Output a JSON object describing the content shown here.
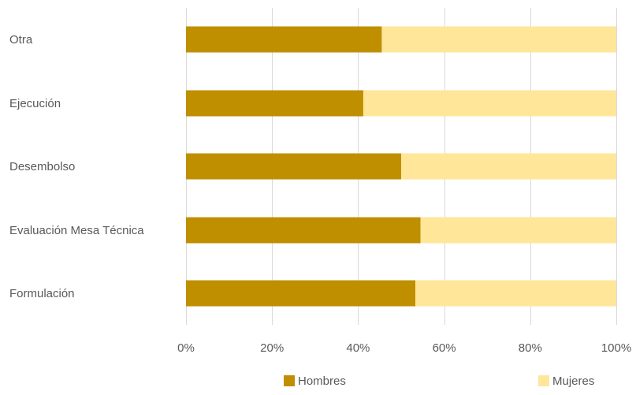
{
  "chart_data": {
    "type": "bar",
    "orientation": "horizontal",
    "stacked": "percent",
    "categories": [
      "Otra",
      "Ejecución",
      "Desembolso",
      "Evaluación Mesa Técnica",
      "Formulación"
    ],
    "series": [
      {
        "name": "Hombres",
        "color": "#bf8f00",
        "values": [
          45.5,
          41.2,
          50.0,
          54.5,
          53.3
        ]
      },
      {
        "name": "Mujeres",
        "color": "#ffe699",
        "values": [
          54.5,
          58.8,
          50.0,
          45.5,
          46.7
        ]
      }
    ],
    "xlim": [
      0,
      100
    ],
    "xticks": [
      0,
      20,
      40,
      60,
      80,
      100
    ],
    "xtick_labels": [
      "0%",
      "20%",
      "40%",
      "60%",
      "80%",
      "100%"
    ],
    "grid": true,
    "legend_position": "bottom"
  }
}
